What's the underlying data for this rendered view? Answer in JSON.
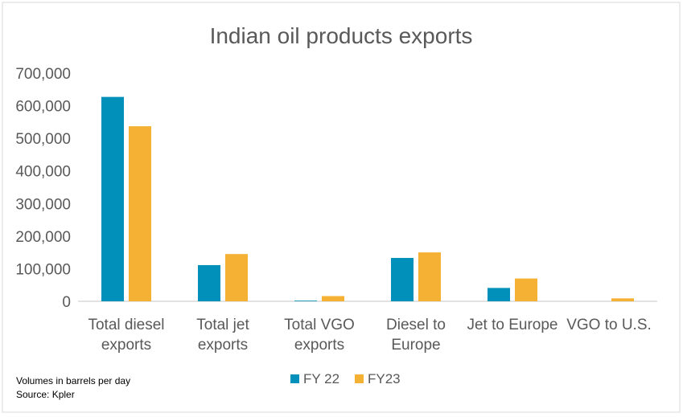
{
  "chart_data": {
    "type": "bar",
    "title": "Indian oil products exports",
    "categories": [
      [
        "Total diesel",
        "exports"
      ],
      [
        "Total jet",
        "exports"
      ],
      [
        "Total VGO",
        "exports"
      ],
      [
        "Diesel to",
        "Europe"
      ],
      [
        "Jet to Europe"
      ],
      [
        "VGO to U.S."
      ]
    ],
    "series": [
      {
        "name": "FY 22",
        "color": "#0090BA",
        "values": [
          627000,
          111000,
          2000,
          133000,
          41000,
          0
        ]
      },
      {
        "name": "FY23",
        "color": "#F4B133",
        "values": [
          537000,
          145000,
          16000,
          150000,
          70000,
          9000
        ]
      }
    ],
    "yticks": [
      "0",
      "100,000",
      "200,000",
      "300,000",
      "400,000",
      "500,000",
      "600,000",
      "700,000"
    ],
    "ylim": [
      0,
      700000
    ],
    "xlabel": "",
    "ylabel": "",
    "grid": false,
    "legend": "bottom-center"
  },
  "notes": [
    "Volumes in barrels per day",
    "Source: Kpler"
  ]
}
